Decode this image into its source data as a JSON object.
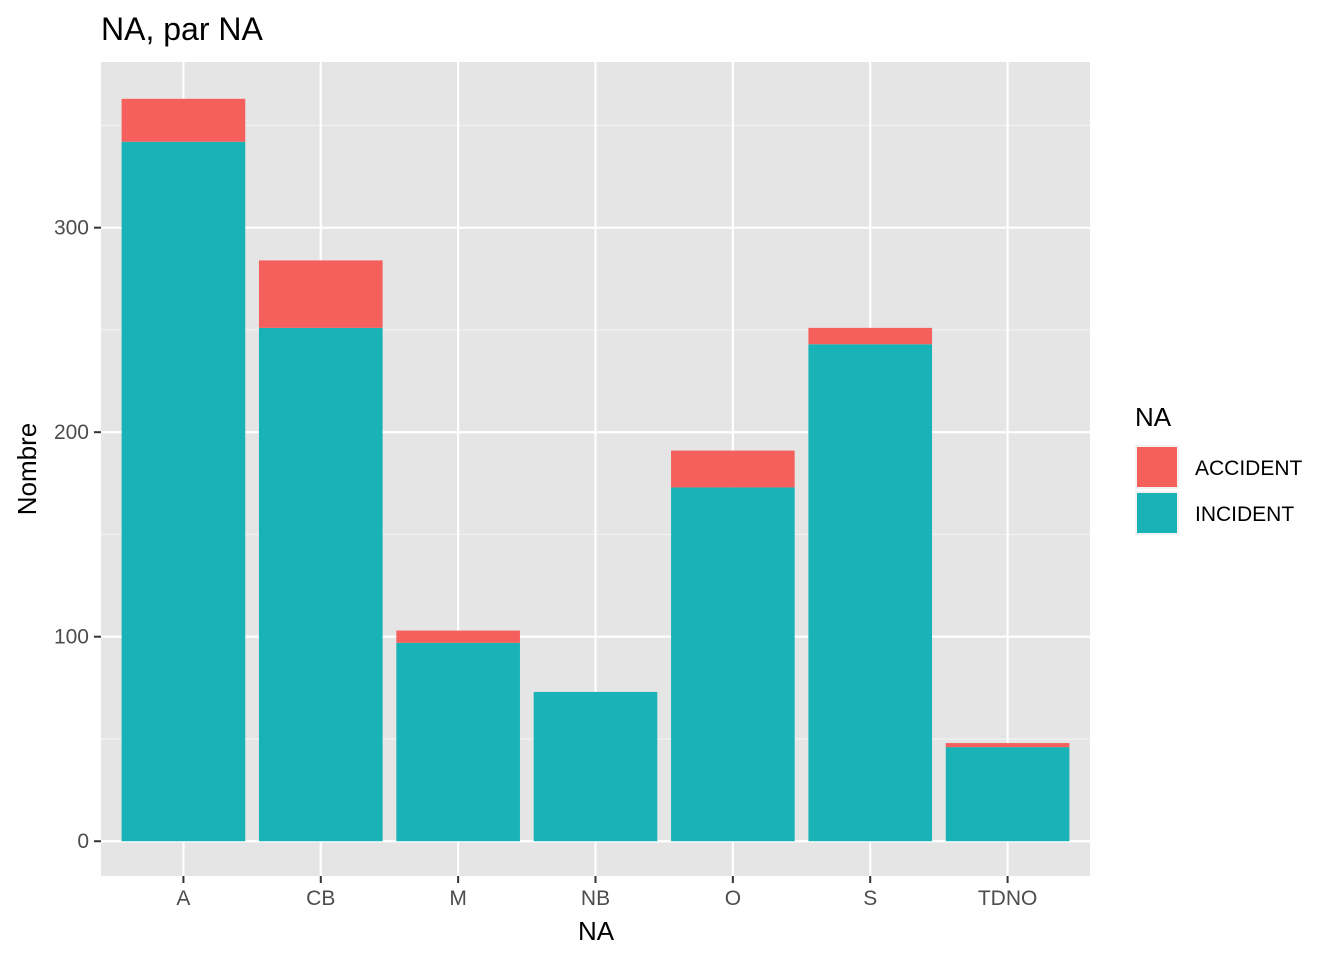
{
  "chart_data": {
    "type": "bar",
    "stacked": true,
    "title": "NA, par NA",
    "xlabel": "NA",
    "ylabel": "Nombre",
    "categories": [
      "A",
      "CB",
      "M",
      "NB",
      "O",
      "S",
      "TDNO"
    ],
    "series": [
      {
        "name": "INCIDENT",
        "color": "#19B2B6",
        "values": [
          342,
          251,
          97,
          73,
          173,
          243,
          46
        ]
      },
      {
        "name": "ACCIDENT",
        "color": "#F5605D",
        "values": [
          21,
          33,
          6,
          0,
          18,
          8,
          2
        ]
      }
    ],
    "y_ticks": [
      0,
      100,
      200,
      300
    ],
    "y_tick_labels": [
      "0",
      "100",
      "200",
      "300"
    ],
    "ylim": [
      -17,
      381
    ],
    "grid": true,
    "legend": {
      "title": "NA",
      "position": "right",
      "items": [
        "ACCIDENT",
        "INCIDENT"
      ]
    },
    "panel_color": "#E5E5E5"
  }
}
